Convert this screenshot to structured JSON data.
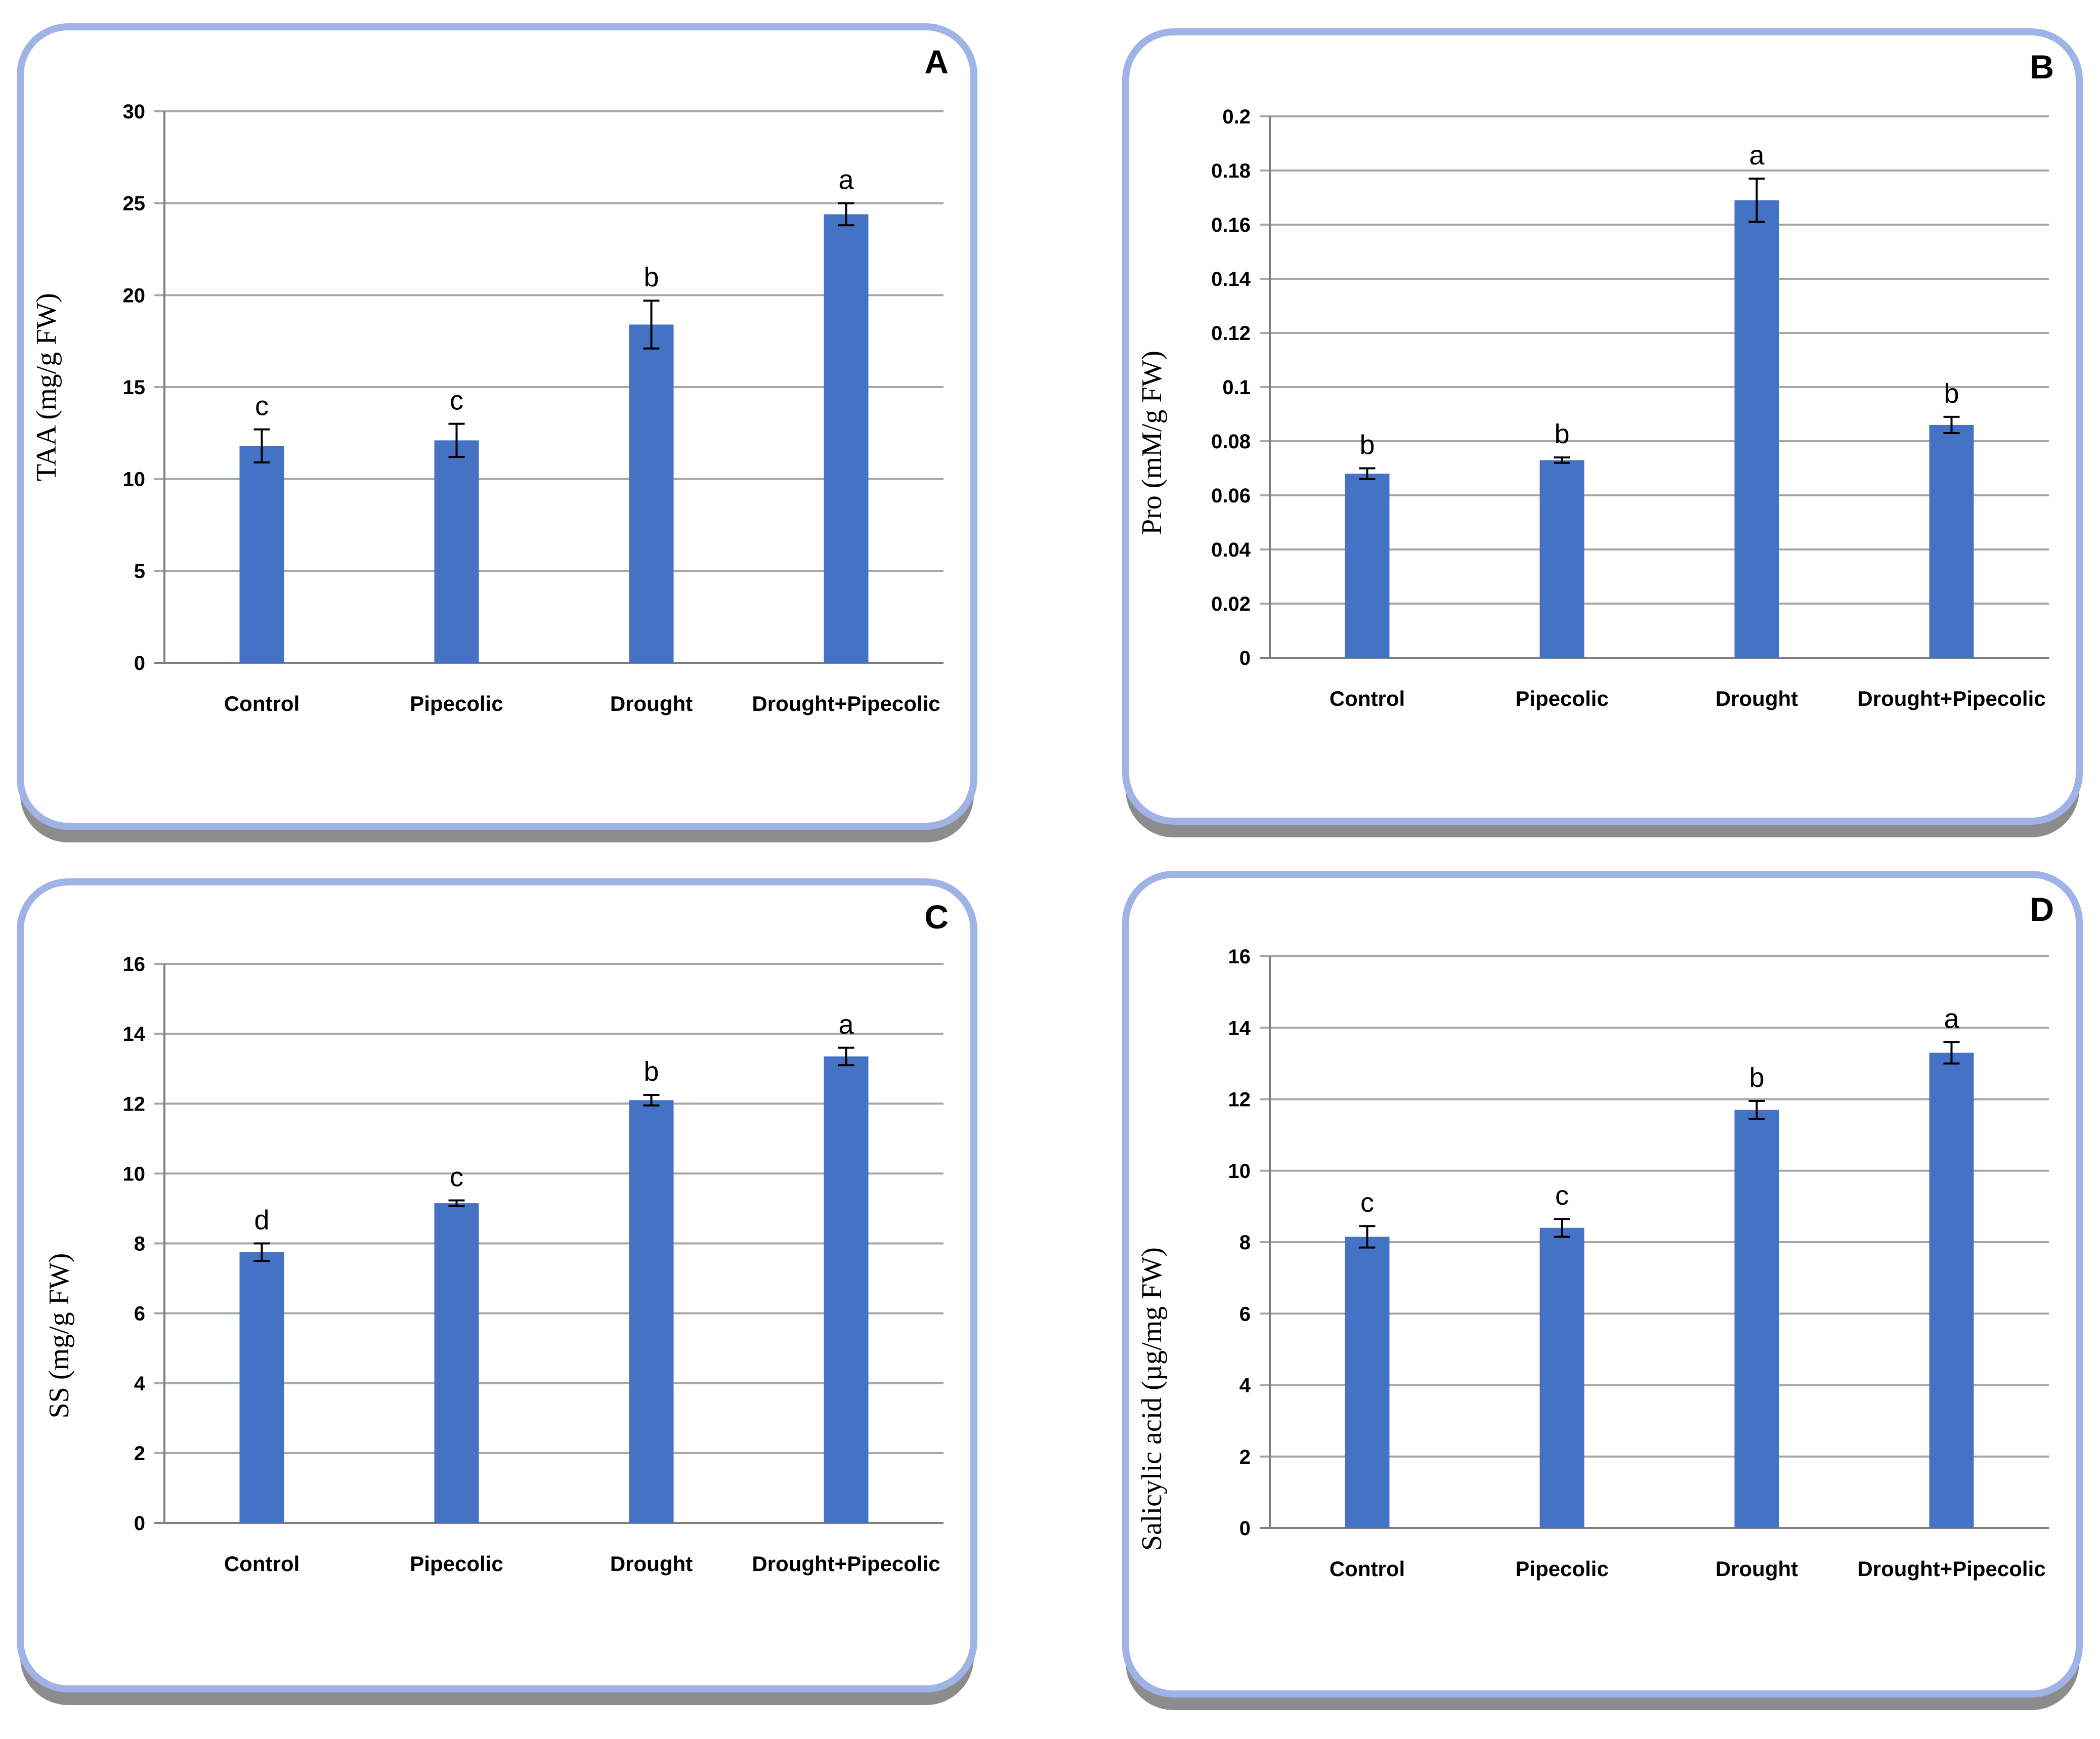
{
  "chart_data": [
    {
      "type": "bar",
      "panel_letter": "A",
      "categories": [
        "Control",
        "Pipecolic",
        "Drought",
        "Drought+Pipecolic"
      ],
      "values": [
        11.8,
        12.1,
        18.4,
        24.4
      ],
      "errors": [
        0.9,
        0.9,
        1.3,
        0.6
      ],
      "significance_letters": [
        "c",
        "c",
        "b",
        "a"
      ],
      "ylabel": "TAA (mg/g FW)",
      "ylim": [
        0,
        30
      ],
      "yticks": [
        "0",
        "5",
        "10",
        "15",
        "20",
        "25",
        "30"
      ],
      "grid": true,
      "legend": "none"
    },
    {
      "type": "bar",
      "panel_letter": "B",
      "categories": [
        "Control",
        "Pipecolic",
        "Drought",
        "Drought+Pipecolic"
      ],
      "values": [
        0.068,
        0.073,
        0.169,
        0.086
      ],
      "errors": [
        0.002,
        0.001,
        0.008,
        0.003
      ],
      "significance_letters": [
        "b",
        "b",
        "a",
        "b"
      ],
      "ylabel": "Pro (mM/g FW)",
      "ylim": [
        0,
        0.2
      ],
      "yticks": [
        "0",
        "0.02",
        "0.04",
        "0.06",
        "0.08",
        "0.1",
        "0.12",
        "0.14",
        "0.16",
        "0.18",
        "0.2"
      ],
      "grid": true,
      "legend": "none"
    },
    {
      "type": "bar",
      "panel_letter": "C",
      "categories": [
        "Control",
        "Pipecolic",
        "Drought",
        "Drought+Pipecolic"
      ],
      "values": [
        7.75,
        9.15,
        12.1,
        13.35
      ],
      "errors": [
        0.25,
        0.08,
        0.15,
        0.25
      ],
      "significance_letters": [
        "d",
        "c",
        "b",
        "a"
      ],
      "ylabel": "SS (mg/g FW)",
      "ylim": [
        0,
        16
      ],
      "yticks": [
        "0",
        "2",
        "4",
        "6",
        "8",
        "10",
        "12",
        "14",
        "16"
      ],
      "grid": true,
      "legend": "none"
    },
    {
      "type": "bar",
      "panel_letter": "D",
      "categories": [
        "Control",
        "Pipecolic",
        "Drought",
        "Drought+Pipecolic"
      ],
      "values": [
        8.15,
        8.4,
        11.7,
        13.3
      ],
      "errors": [
        0.3,
        0.25,
        0.25,
        0.3
      ],
      "significance_letters": [
        "c",
        "c",
        "b",
        "a"
      ],
      "ylabel": "Salicylic acid (µg/mg FW)",
      "ylim": [
        0,
        16
      ],
      "yticks": [
        "0",
        "2",
        "4",
        "6",
        "8",
        "10",
        "12",
        "14",
        "16"
      ],
      "grid": true,
      "legend": "none"
    }
  ],
  "colors": {
    "bar": "#4472c4",
    "grid": "#a6a6a6",
    "axis": "#7f7f7f",
    "panel_border": "#9fb3e6",
    "panel_shadow": "#8c8c8c",
    "text": "#000000"
  }
}
